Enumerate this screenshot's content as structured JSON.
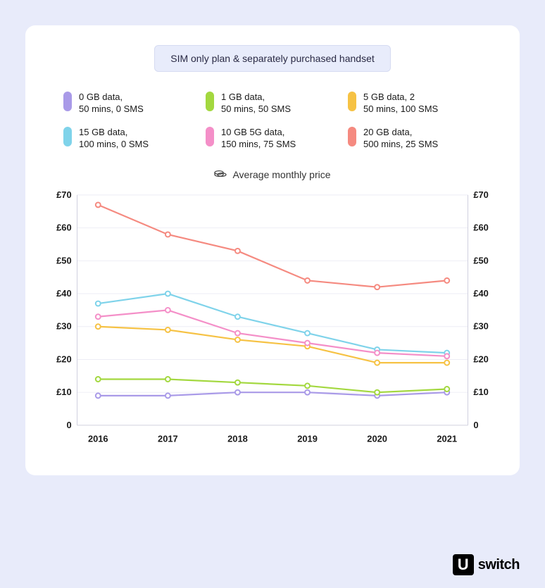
{
  "title": "SIM only plan & separately purchased handset",
  "subheader": "Average monthly price",
  "background_color": "#e8ebfa",
  "card_background": "#ffffff",
  "title_pill_bg": "#e8ecfb",
  "chart": {
    "type": "line",
    "categories": [
      "2016",
      "2017",
      "2018",
      "2019",
      "2020",
      "2021"
    ],
    "ylim": [
      0,
      70
    ],
    "ytick_step": 10,
    "y_prefix": "£",
    "grid_color": "#ededf5",
    "axis_color": "#d0d0dd",
    "background_color": "#ffffff",
    "marker_radius": 3.5,
    "line_width": 2.2,
    "tick_fontsize": 13,
    "tick_fontweight": 700
  },
  "series": [
    {
      "key": "0gb",
      "legend_line1": "0 GB data,",
      "legend_line2": "50 mins, 0 SMS",
      "color": "#a99ae8",
      "values": [
        9,
        9,
        10,
        10,
        9,
        10
      ]
    },
    {
      "key": "1gb",
      "legend_line1": "1 GB data,",
      "legend_line2": "50 mins, 50 SMS",
      "color": "#a3d83f",
      "values": [
        14,
        14,
        13,
        12,
        10,
        11
      ]
    },
    {
      "key": "5gb",
      "legend_line1": "5 GB data, 2",
      "legend_line2": "50 mins, 100 SMS",
      "color": "#f6c244",
      "values": [
        30,
        29,
        26,
        24,
        19,
        19
      ]
    },
    {
      "key": "15gb",
      "legend_line1": "15 GB data,",
      "legend_line2": "100 mins, 0 SMS",
      "color": "#7fd3ea",
      "values": [
        37,
        40,
        33,
        28,
        23,
        22
      ]
    },
    {
      "key": "10gb5g",
      "legend_line1": "10 GB 5G data,",
      "legend_line2": "150 mins, 75 SMS",
      "color": "#f48fc8",
      "values": [
        33,
        35,
        28,
        25,
        22,
        21
      ]
    },
    {
      "key": "20gb",
      "legend_line1": "20 GB data,",
      "legend_line2": "500 mins, 25 SMS",
      "color": "#f58a80",
      "values": [
        67,
        58,
        53,
        44,
        42,
        44
      ]
    }
  ],
  "brand": {
    "badge": "U",
    "text": "switch"
  }
}
